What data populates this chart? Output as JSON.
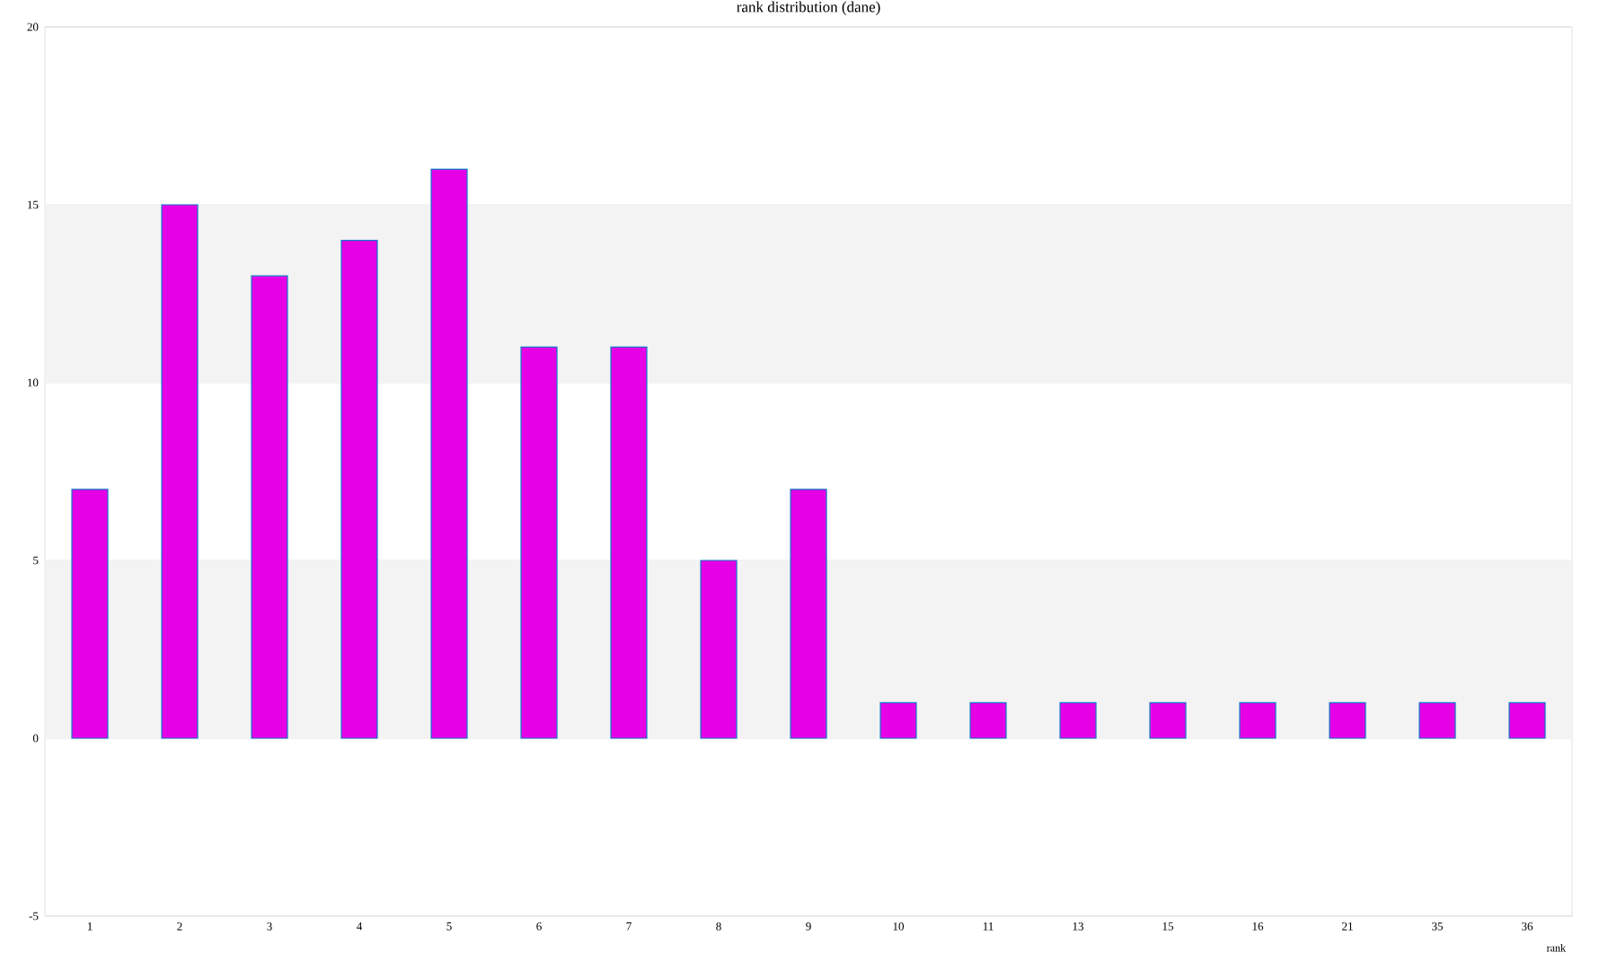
{
  "chart_data": {
    "type": "bar",
    "title": "rank distribution (dane)",
    "xlabel": "rank",
    "categories": [
      "1",
      "2",
      "3",
      "4",
      "5",
      "6",
      "7",
      "8",
      "9",
      "10",
      "11",
      "13",
      "15",
      "16",
      "21",
      "35",
      "36"
    ],
    "values": [
      7,
      15,
      13,
      14,
      16,
      11,
      11,
      5,
      7,
      1,
      1,
      1,
      1,
      1,
      1,
      1,
      1
    ],
    "color": "#e600e6",
    "ylim": [
      -5,
      20
    ],
    "yticks": [
      -5,
      0,
      5,
      10,
      15,
      20
    ],
    "grid": "y",
    "bands": [
      {
        "axis": "y",
        "from": 0,
        "to": 5,
        "color": "#f3f3f3"
      },
      {
        "axis": "y",
        "from": 10,
        "to": 15,
        "color": "#f3f3f3"
      }
    ]
  }
}
